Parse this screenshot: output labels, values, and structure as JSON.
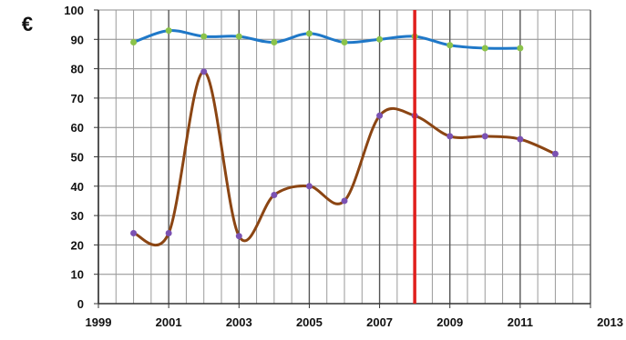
{
  "chart_data": {
    "type": "line",
    "title": "",
    "xlabel": "",
    "ylabel": "",
    "unit_label": "€",
    "xlim": [
      1999,
      2013
    ],
    "ylim": [
      0,
      100
    ],
    "x_ticks": [
      1999,
      2001,
      2003,
      2005,
      2007,
      2009,
      2011,
      2013
    ],
    "x_tick_labels": [
      "1999",
      "2001",
      "2003",
      "2005",
      "2007",
      "2009",
      "2011",
      "2013"
    ],
    "y_ticks": [
      0,
      10,
      20,
      30,
      40,
      50,
      60,
      70,
      80,
      90,
      100
    ],
    "y_tick_labels": [
      "0",
      "10",
      "20",
      "30",
      "40",
      "50",
      "60",
      "70",
      "80",
      "90",
      "100"
    ],
    "grid": true,
    "legend": "none",
    "reference_line": {
      "x": 2008,
      "color": "#e0201e"
    },
    "series": [
      {
        "color": "#1f78c8",
        "marker_color": "#8bc34a",
        "x": [
          2000,
          2001,
          2002,
          2003,
          2004,
          2005,
          2006,
          2007,
          2008,
          2009,
          2010,
          2011
        ],
        "values": [
          89,
          93,
          91,
          91,
          89,
          92,
          89,
          90,
          91,
          88,
          87,
          87
        ]
      },
      {
        "color": "#8b4513",
        "marker_color": "#7b52b3",
        "x": [
          2000,
          2001,
          2002,
          2003,
          2004,
          2005,
          2006,
          2007,
          2008,
          2009,
          2010,
          2011,
          2012
        ],
        "values": [
          24,
          24,
          79,
          23,
          37,
          40,
          35,
          64,
          64,
          57,
          57,
          56,
          51
        ]
      }
    ]
  }
}
